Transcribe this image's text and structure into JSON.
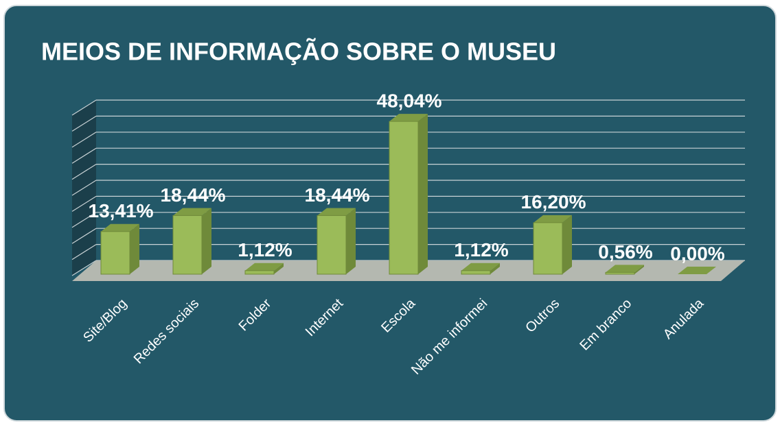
{
  "chart_data": {
    "type": "bar",
    "title": "MEIOS DE INFORMAÇÃO SOBRE O MUSEU",
    "categories": [
      "Site/Blog",
      "Redes sociais",
      "Folder",
      "Internet",
      "Escola",
      "Não me informei",
      "Outros",
      "Em branco",
      "Anulada"
    ],
    "values": [
      13.41,
      18.44,
      1.12,
      18.44,
      48.04,
      1.12,
      16.2,
      0.56,
      0
    ],
    "value_labels": [
      "13,41%",
      "18,44%",
      "1,12%",
      "18,44%",
      "48,04%",
      "1,12%",
      "16,20%",
      "0,56%",
      "0,00%"
    ],
    "color": "#9bbb59",
    "ylim": [
      0,
      50
    ],
    "yticks": [
      0,
      5,
      10,
      15,
      20,
      25,
      30,
      35,
      40,
      45,
      50
    ],
    "grid": true
  }
}
